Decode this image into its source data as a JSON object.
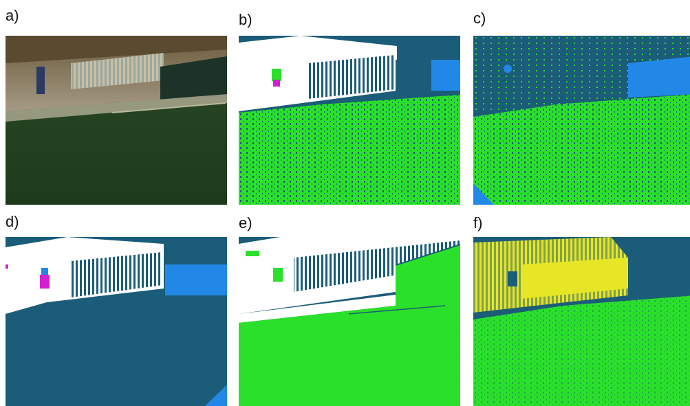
{
  "panels": [
    {
      "label": "a)"
    },
    {
      "label": "b)"
    },
    {
      "label": "c)"
    },
    {
      "label": "d)"
    },
    {
      "label": "e)"
    },
    {
      "label": "f)"
    }
  ]
}
